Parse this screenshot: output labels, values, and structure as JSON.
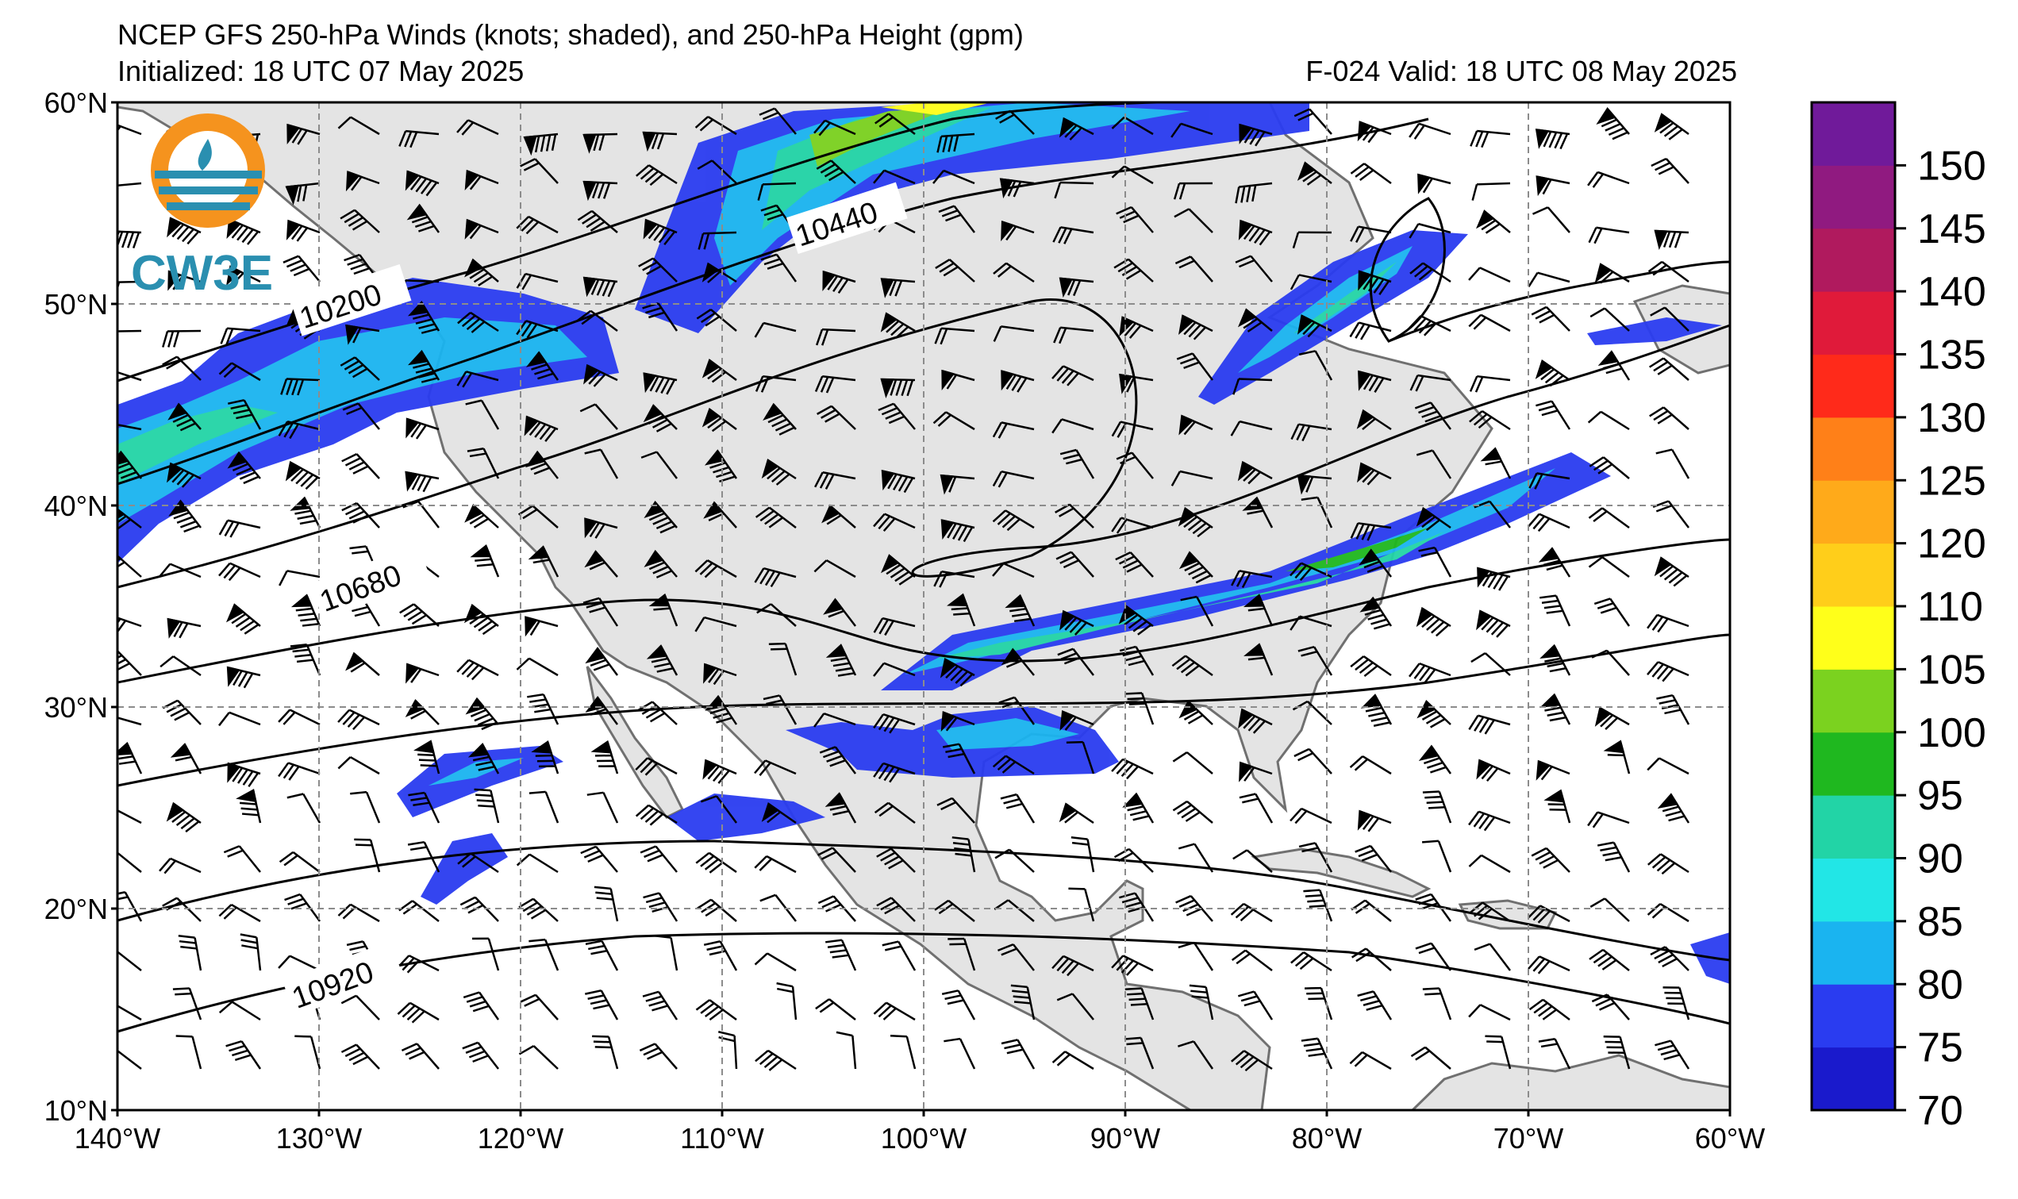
{
  "header": {
    "title_line1": "NCEP GFS 250-hPa Winds (knots; shaded), and 250-hPa Height (gpm)",
    "title_line2": "Initialized: 18 UTC 07 May 2025",
    "valid": "F-024  Valid: 18 UTC 08 May 2025"
  },
  "logo": {
    "text": "CW3E",
    "color": "#2a8fb0",
    "accent": "#f5931e"
  },
  "axes": {
    "lat_labels": [
      "60°N",
      "50°N",
      "40°N",
      "30°N",
      "20°N",
      "10°N"
    ],
    "lat_values": [
      60,
      50,
      40,
      30,
      20,
      10
    ],
    "lon_labels": [
      "140°W",
      "130°W",
      "120°W",
      "110°W",
      "100°W",
      "90°W",
      "80°W",
      "70°W",
      "60°W"
    ],
    "lon_values": [
      -140,
      -130,
      -120,
      -110,
      -100,
      -90,
      -80,
      -70,
      -60
    ],
    "lon_range": [
      -140,
      -60
    ],
    "lat_range": [
      10,
      60
    ],
    "grid": true
  },
  "contour_labels": [
    "10200",
    "10440",
    "10680",
    "10920"
  ],
  "colorbar": {
    "labels": [
      "150",
      "145",
      "140",
      "135",
      "130",
      "125",
      "120",
      "110",
      "105",
      "100",
      "95",
      "90",
      "85",
      "80",
      "75",
      "70"
    ],
    "colors": [
      "#1a1acc",
      "#2a3cf0",
      "#1ab4f0",
      "#22e6e6",
      "#22d4a6",
      "#1fb81f",
      "#7bd21f",
      "#ffff1a",
      "#ffce1a",
      "#ffaa1a",
      "#ff8018",
      "#ff2a1a",
      "#e01a3a",
      "#b01a5e",
      "#901a80",
      "#701a9a"
    ]
  },
  "colors": {
    "land": "#e4e4e4",
    "ocean": "#ffffff",
    "coast": "#707070",
    "grid": "#8c8c8c"
  }
}
